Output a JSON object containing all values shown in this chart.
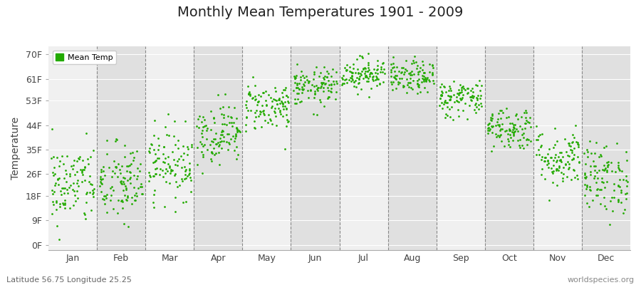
{
  "title": "Monthly Mean Temperatures 1901 - 2009",
  "ylabel": "Temperature",
  "subtitle_left": "Latitude 56.75 Longitude 25.25",
  "subtitle_right": "worldspecies.org",
  "legend_label": "Mean Temp",
  "dot_color": "#22aa00",
  "band_color_light": "#f0f0f0",
  "band_color_dark": "#e0e0e0",
  "months": [
    "Jan",
    "Feb",
    "Mar",
    "Apr",
    "May",
    "Jun",
    "Jul",
    "Aug",
    "Sep",
    "Oct",
    "Nov",
    "Dec"
  ],
  "ytick_labels": [
    "0F",
    "9F",
    "18F",
    "26F",
    "35F",
    "44F",
    "53F",
    "61F",
    "70F"
  ],
  "ytick_values": [
    0,
    9,
    18,
    26,
    35,
    44,
    53,
    61,
    70
  ],
  "ylim": [
    -2,
    73
  ],
  "mean_temps_F": [
    22.0,
    22.5,
    30.0,
    41.0,
    51.0,
    58.0,
    63.0,
    61.5,
    54.0,
    43.0,
    32.0,
    24.5
  ],
  "std_temps_F": [
    7.5,
    7.5,
    6.5,
    5.5,
    4.5,
    3.5,
    3.0,
    3.0,
    3.5,
    4.0,
    5.5,
    6.5
  ],
  "n_years": 109
}
